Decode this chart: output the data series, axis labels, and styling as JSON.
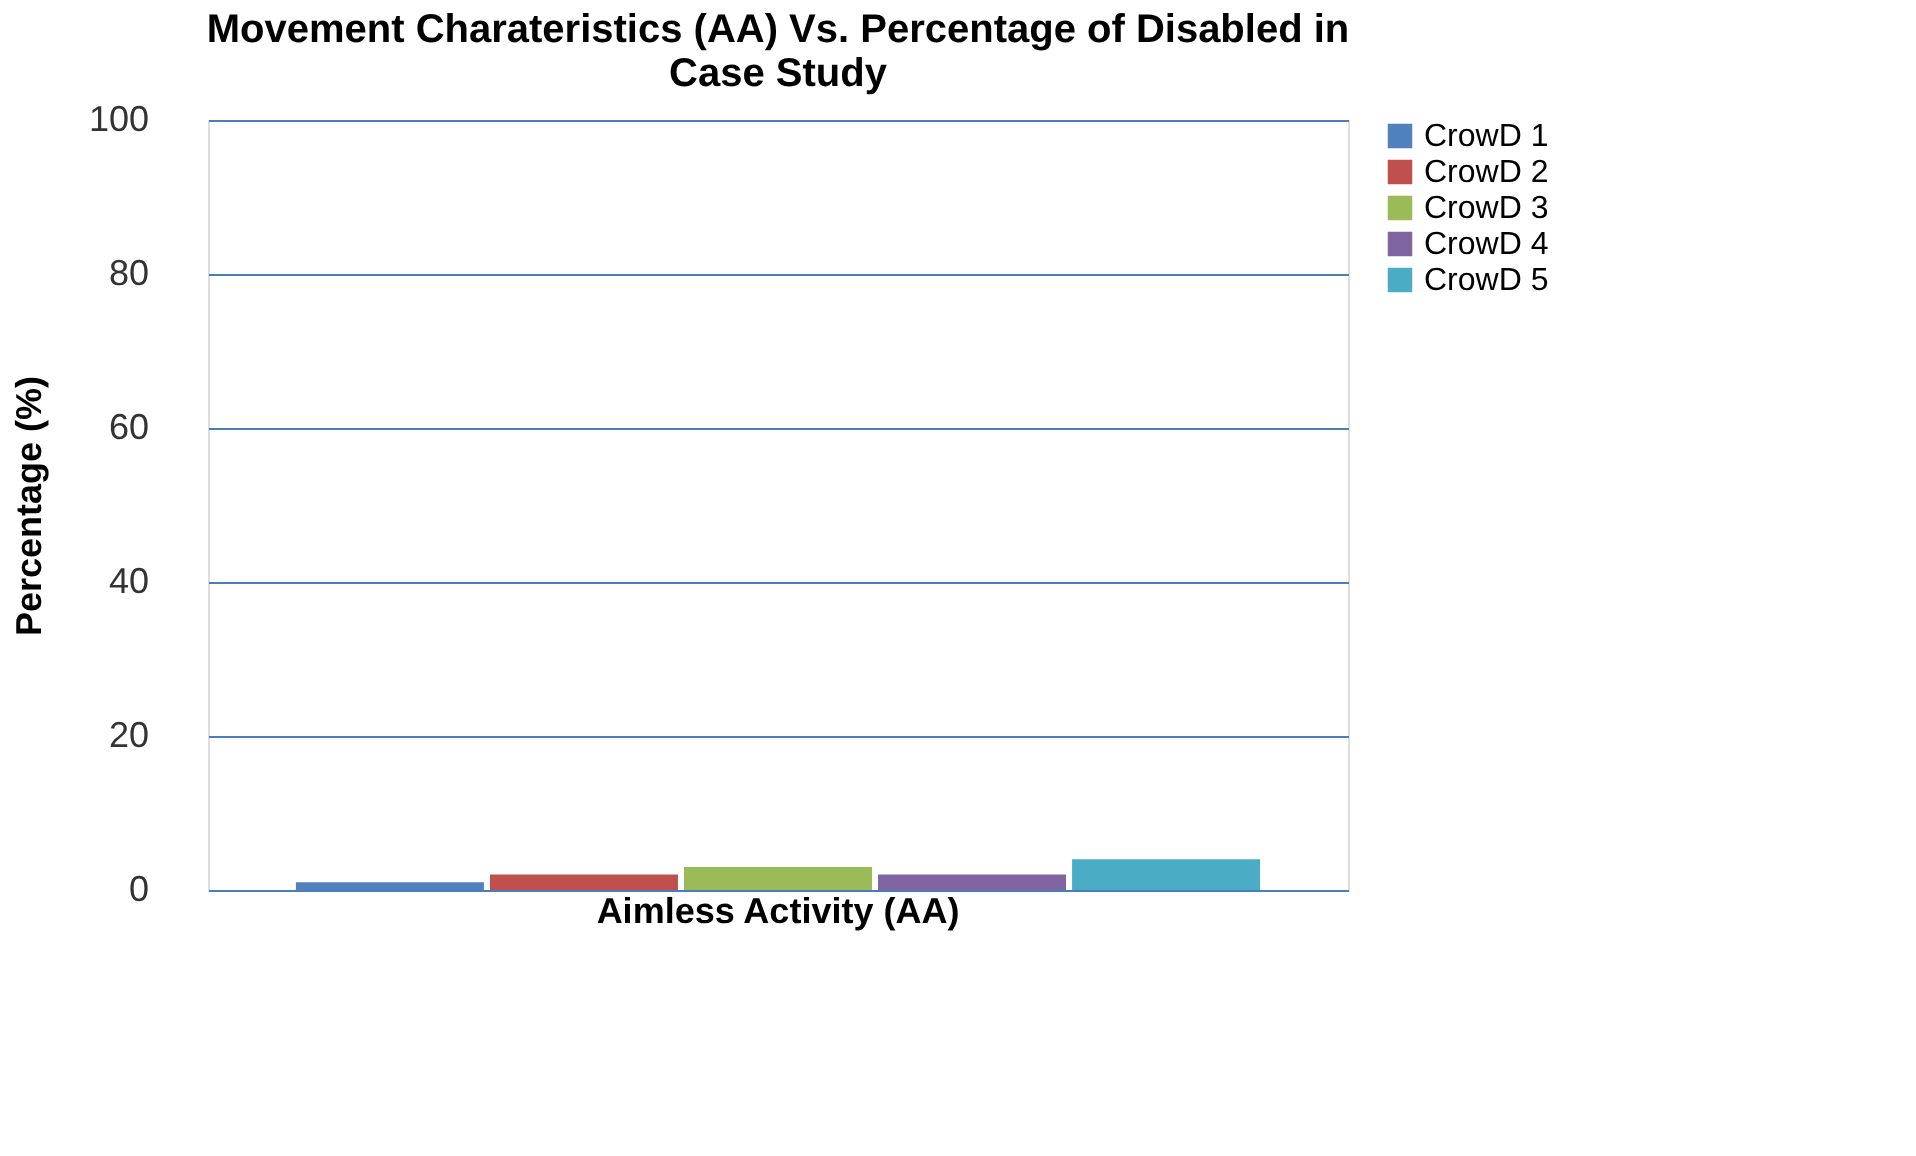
{
  "chart_data": {
    "type": "bar",
    "title": "Movement Charateristics (AA) Vs. Percentage of Disabled in Case Study",
    "ylabel": "Percentage (%)",
    "categories": [
      "Aimless Activity (AA)"
    ],
    "series": [
      {
        "name": "CrowD 1",
        "color": "#4f81bd",
        "values": [
          1
        ]
      },
      {
        "name": "CrowD 2",
        "color": "#c0504d",
        "values": [
          2
        ]
      },
      {
        "name": "CrowD 3",
        "color": "#9bbb59",
        "values": [
          3
        ]
      },
      {
        "name": "CrowD 4",
        "color": "#8064a2",
        "values": [
          2
        ]
      },
      {
        "name": "CrowD 5",
        "color": "#4bacc6",
        "values": [
          4
        ]
      }
    ],
    "ylim": [
      0,
      100
    ],
    "yticks": [
      0,
      20,
      40,
      60,
      80,
      100
    ],
    "grid": "y",
    "legend": "right"
  }
}
